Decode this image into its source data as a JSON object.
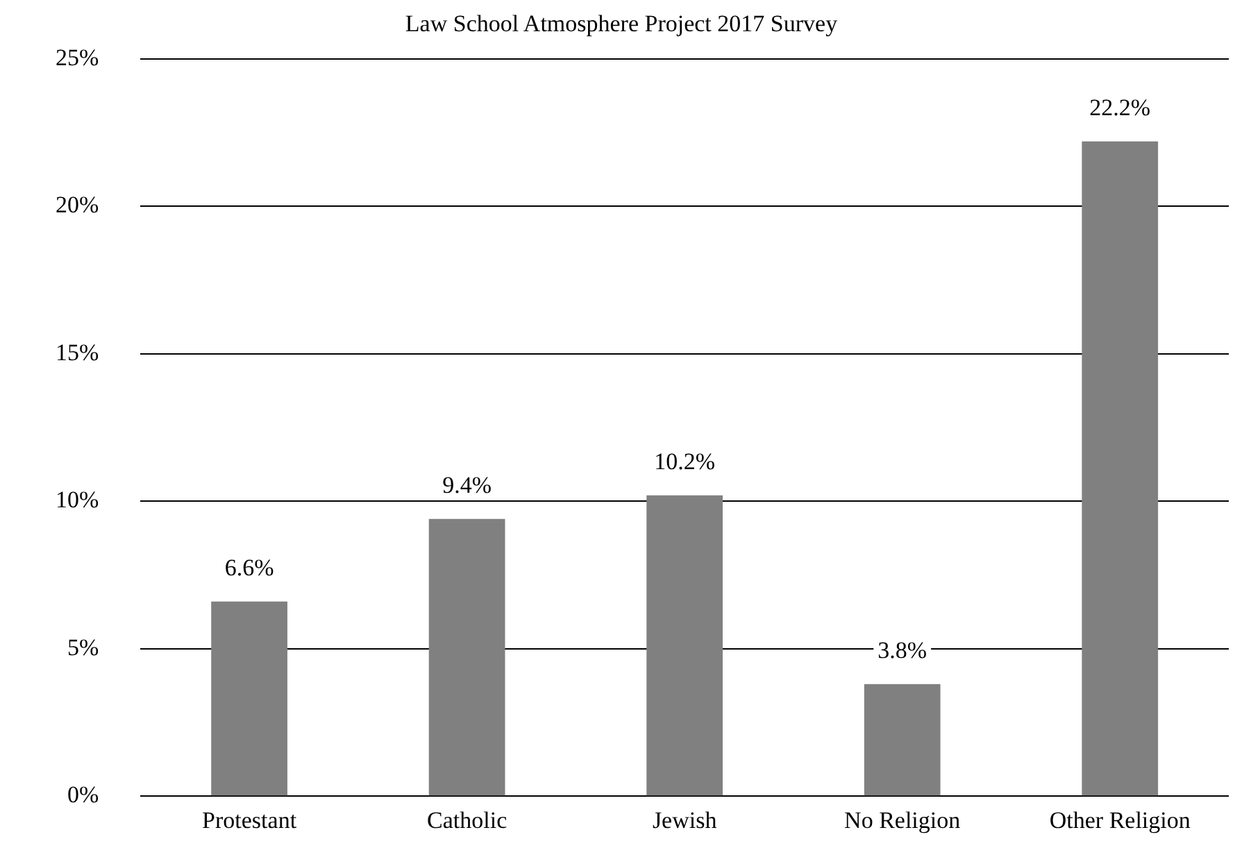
{
  "chart_data": {
    "type": "bar",
    "title": "Law School Atmosphere Project 2017 Survey",
    "categories": [
      "Protestant",
      "Catholic",
      "Jewish",
      "No Religion",
      "Other Religion"
    ],
    "values": [
      6.6,
      9.4,
      10.2,
      3.8,
      22.2
    ],
    "value_labels": [
      "6.6%",
      "9.4%",
      "10.2%",
      "3.8%",
      "22.2%"
    ],
    "color": "#808080",
    "ylim": [
      0,
      25
    ],
    "yticks": [
      {
        "value": 0,
        "label": "0%"
      },
      {
        "value": 5,
        "label": "5%"
      },
      {
        "value": 10,
        "label": "10%"
      },
      {
        "value": 15,
        "label": "15%"
      },
      {
        "value": 20,
        "label": "20%"
      },
      {
        "value": 25,
        "label": "25%"
      }
    ],
    "grid": "y",
    "legend": false
  }
}
